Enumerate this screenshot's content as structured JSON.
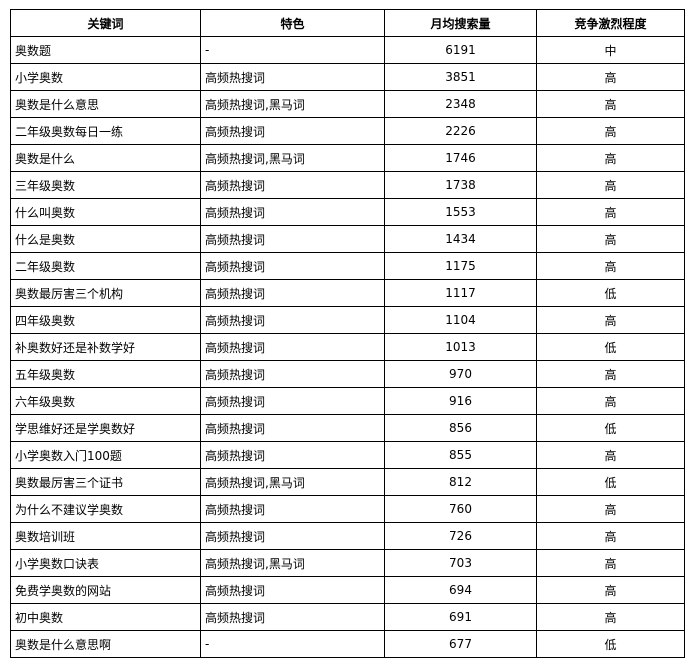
{
  "headers": [
    "关键词",
    "特色",
    "月均搜索量",
    "竞争激烈程度"
  ],
  "rows": [
    [
      "奥数题",
      "-",
      "6191",
      "中"
    ],
    [
      "小学奥数",
      "高频热搜词",
      "3851",
      "高"
    ],
    [
      "奥数是什么意思",
      "高频热搜词,黑马词",
      "2348",
      "高"
    ],
    [
      "二年级奥数每日一练",
      "高频热搜词",
      "2226",
      "高"
    ],
    [
      "奥数是什么",
      "高频热搜词,黑马词",
      "1746",
      "高"
    ],
    [
      "三年级奥数",
      "高频热搜词",
      "1738",
      "高"
    ],
    [
      "什么叫奥数",
      "高频热搜词",
      "1553",
      "高"
    ],
    [
      "什么是奥数",
      "高频热搜词",
      "1434",
      "高"
    ],
    [
      "二年级奥数",
      "高频热搜词",
      "1175",
      "高"
    ],
    [
      "奥数最厉害三个机构",
      "高频热搜词",
      "1117",
      "低"
    ],
    [
      "四年级奥数",
      "高频热搜词",
      "1104",
      "高"
    ],
    [
      "补奥数好还是补数学好",
      "高频热搜词",
      "1013",
      "低"
    ],
    [
      "五年级奥数",
      "高频热搜词",
      "970",
      "高"
    ],
    [
      "六年级奥数",
      "高频热搜词",
      "916",
      "高"
    ],
    [
      "学思维好还是学奥数好",
      "高频热搜词",
      "856",
      "低"
    ],
    [
      "小学奥数入门100题",
      "高频热搜词",
      "855",
      "高"
    ],
    [
      "奥数最厉害三个证书",
      "高频热搜词,黑马词",
      "812",
      "低"
    ],
    [
      "为什么不建议学奥数",
      "高频热搜词",
      "760",
      "高"
    ],
    [
      "奥数培训班",
      "高频热搜词",
      "726",
      "高"
    ],
    [
      "小学奥数口诀表",
      "高频热搜词,黑马词",
      "703",
      "高"
    ],
    [
      "免费学奥数的网站",
      "高频热搜词",
      "694",
      "高"
    ],
    [
      "初中奥数",
      "高频热搜词",
      "691",
      "高"
    ],
    [
      "奥数是什么意思啊",
      "-",
      "677",
      "低"
    ]
  ]
}
